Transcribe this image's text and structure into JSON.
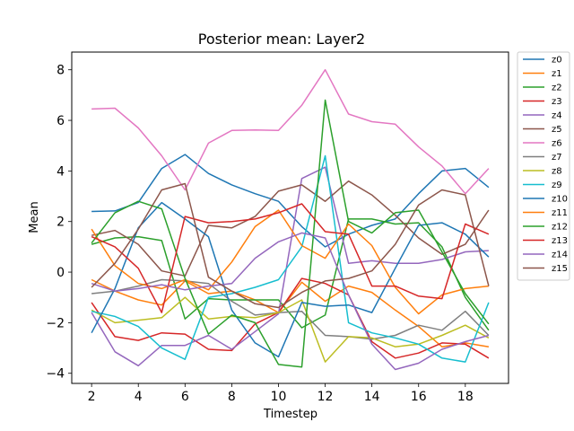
{
  "chart_data": {
    "type": "line",
    "title": "Posterior mean: Layer2",
    "xlabel": "Timestep",
    "ylabel": "Mean",
    "xlim": [
      1.15,
      19.85
    ],
    "ylim": [
      -4.4,
      8.7
    ],
    "xticks": [
      2,
      4,
      6,
      8,
      10,
      12,
      14,
      16,
      18
    ],
    "yticks": [
      -4,
      -2,
      0,
      2,
      4,
      6,
      8
    ],
    "grid": false,
    "legend_position": "outside-right",
    "x": [
      2,
      3,
      4,
      5,
      6,
      7,
      8,
      9,
      10,
      11,
      12,
      13,
      14,
      15,
      16,
      17,
      18,
      19
    ],
    "series": [
      {
        "name": "z0",
        "color": "#1f77b4",
        "values": [
          2.4,
          2.42,
          2.75,
          4.1,
          4.65,
          3.9,
          3.45,
          3.1,
          2.8,
          1.8,
          1.0,
          1.5,
          1.85,
          2.1,
          3.1,
          4.0,
          4.1,
          3.35
        ]
      },
      {
        "name": "z1",
        "color": "#ff7f0e",
        "values": [
          -0.3,
          -0.75,
          -1.1,
          -1.3,
          -0.35,
          -0.85,
          -0.75,
          -1.1,
          -1.6,
          -0.4,
          -1.15,
          -0.55,
          -0.8,
          -1.5,
          -2.15,
          -2.95,
          -2.8,
          -2.95
        ]
      },
      {
        "name": "z2",
        "color": "#2ca02c",
        "values": [
          1.1,
          1.35,
          1.4,
          1.25,
          -1.85,
          -1.05,
          -1.1,
          -1.1,
          -1.1,
          -2.2,
          -1.7,
          2.1,
          2.1,
          1.9,
          1.95,
          1.0,
          -1.0,
          -2.3
        ]
      },
      {
        "name": "z3",
        "color": "#d62728",
        "values": [
          -1.2,
          -2.55,
          -2.7,
          -2.4,
          -2.45,
          -3.05,
          -3.1,
          -2.05,
          -1.6,
          -0.25,
          -0.45,
          -0.9,
          -2.75,
          -3.4,
          -3.2,
          -2.8,
          -2.85,
          -3.4
        ]
      },
      {
        "name": "z4",
        "color": "#9467bd",
        "values": [
          -1.6,
          -3.15,
          -3.7,
          -2.9,
          -2.9,
          -2.5,
          -3.05,
          -2.35,
          -1.65,
          3.7,
          4.15,
          0.35,
          0.45,
          0.35,
          0.35,
          0.5,
          0.8,
          0.85
        ]
      },
      {
        "name": "z5",
        "color": "#8c564b",
        "values": [
          1.45,
          1.65,
          1.1,
          0.05,
          -0.15,
          1.85,
          1.75,
          2.2,
          3.2,
          3.45,
          2.8,
          3.6,
          3.05,
          2.25,
          1.35,
          0.7,
          1.1,
          2.45
        ]
      },
      {
        "name": "z6",
        "color": "#e377c2",
        "values": [
          6.45,
          6.48,
          5.7,
          4.6,
          3.25,
          5.1,
          5.6,
          5.62,
          5.6,
          6.6,
          8.0,
          6.25,
          5.95,
          5.85,
          4.95,
          4.2,
          3.1,
          4.1
        ]
      },
      {
        "name": "z7",
        "color": "#7f7f7f",
        "values": [
          -0.85,
          -0.75,
          -0.55,
          -0.3,
          -0.35,
          -0.45,
          -1.15,
          -1.7,
          -1.6,
          -1.55,
          -2.5,
          -2.55,
          -2.65,
          -2.5,
          -2.1,
          -2.3,
          -1.55,
          -2.5
        ]
      },
      {
        "name": "z8",
        "color": "#bcbd22",
        "values": [
          -1.5,
          -2.0,
          -1.9,
          -1.8,
          -1.0,
          -1.85,
          -1.75,
          -1.8,
          -1.6,
          -1.1,
          -3.55,
          -2.55,
          -2.6,
          -2.95,
          -2.85,
          -2.5,
          -2.1,
          -2.6
        ]
      },
      {
        "name": "z9",
        "color": "#17becf",
        "values": [
          -1.55,
          -1.75,
          -2.15,
          -3.0,
          -3.45,
          -1.0,
          -0.85,
          -0.6,
          -0.3,
          1.0,
          4.6,
          -2.0,
          -2.4,
          -2.6,
          -2.85,
          -3.4,
          -3.55,
          -1.2
        ]
      },
      {
        "name": "z10",
        "color": "#1f77b4",
        "values": [
          -2.4,
          -0.65,
          1.75,
          2.75,
          2.1,
          1.4,
          -1.5,
          -2.8,
          -3.35,
          -1.2,
          -1.35,
          -1.3,
          -1.6,
          0.15,
          1.85,
          1.95,
          1.5,
          0.6
        ]
      },
      {
        "name": "z11",
        "color": "#ff7f0e",
        "values": [
          1.7,
          0.25,
          -0.45,
          -0.65,
          -0.3,
          -0.7,
          0.4,
          1.8,
          2.45,
          1.05,
          0.55,
          1.9,
          1.05,
          -0.6,
          -1.65,
          -0.9,
          -0.65,
          -0.55
        ]
      },
      {
        "name": "z12",
        "color": "#2ca02c",
        "values": [
          1.15,
          2.35,
          2.8,
          2.5,
          -0.25,
          -2.45,
          -1.7,
          -2.0,
          -3.65,
          -3.75,
          6.8,
          2.0,
          1.55,
          2.35,
          2.45,
          0.8,
          -0.85,
          -2.05
        ]
      },
      {
        "name": "z13",
        "color": "#d62728",
        "values": [
          1.4,
          1.0,
          0.15,
          -1.6,
          2.2,
          1.95,
          2.0,
          2.1,
          2.35,
          2.7,
          1.6,
          1.5,
          -0.55,
          -0.55,
          -0.95,
          -1.05,
          1.9,
          1.5
        ]
      },
      {
        "name": "z14",
        "color": "#9467bd",
        "values": [
          -0.45,
          -0.75,
          -0.65,
          -0.5,
          -0.7,
          -0.55,
          -0.45,
          0.55,
          1.2,
          1.55,
          1.35,
          -0.9,
          -2.85,
          -3.85,
          -3.6,
          -3.05,
          -2.75,
          -2.5
        ]
      },
      {
        "name": "z15",
        "color": "#8c564b",
        "values": [
          -0.6,
          0.35,
          1.7,
          3.25,
          3.5,
          -0.2,
          -0.75,
          -1.25,
          -1.4,
          -0.8,
          -0.35,
          -0.25,
          0.05,
          1.1,
          2.65,
          3.25,
          3.05,
          -0.55
        ]
      }
    ]
  }
}
